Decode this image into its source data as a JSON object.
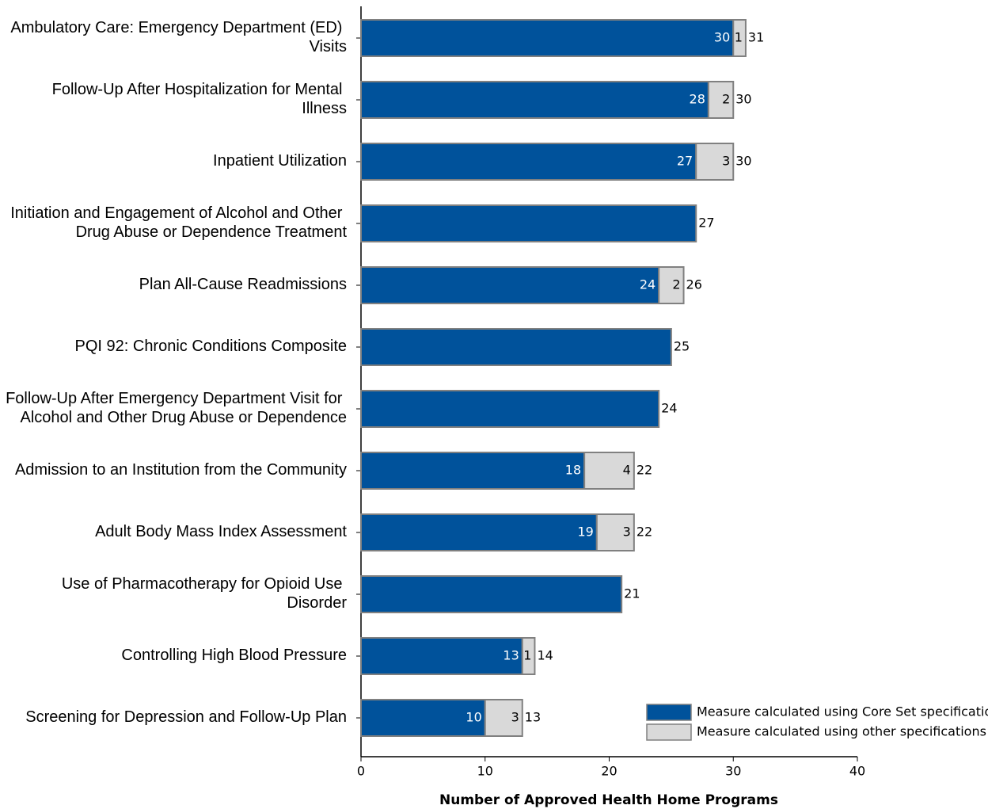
{
  "chart_data": {
    "type": "stacked-bar-horizontal",
    "categories": [
      "Ambulatory Care: Emergency Department (ED) Visits",
      "Follow-Up After Hospitalization for Mental Illness",
      "Inpatient Utilization",
      "Initiation and Engagement of Alcohol and Other Drug Abuse or Dependence Treatment",
      "Plan All-Cause Readmissions",
      "PQI 92: Chronic Conditions Composite",
      "Follow-Up After Emergency Department Visit for Alcohol and Other Drug Abuse or Dependence",
      "Admission to an Institution from the Community",
      "Adult Body Mass Index Assessment",
      "Use of Pharmacotherapy for Opioid Use Disorder",
      "Controlling High Blood Pressure",
      "Screening for Depression and Follow-Up Plan"
    ],
    "series": [
      {
        "name": "Measure calculated using Core Set specifications",
        "color": "#00529b",
        "values": [
          30,
          28,
          27,
          27,
          24,
          25,
          24,
          18,
          19,
          21,
          13,
          10
        ]
      },
      {
        "name": "Measure calculated using other specifications",
        "color": "#d9d9d9",
        "values": [
          1,
          2,
          3,
          null,
          2,
          null,
          null,
          4,
          3,
          null,
          1,
          3
        ]
      }
    ],
    "totals": [
      31,
      30,
      30,
      27,
      26,
      25,
      24,
      22,
      22,
      21,
      14,
      13
    ],
    "xlabel": "Number of Approved Health Home Programs",
    "xlim": [
      0,
      40
    ],
    "xticks": [
      0,
      10,
      20,
      30,
      40
    ],
    "legend": "lower right"
  }
}
